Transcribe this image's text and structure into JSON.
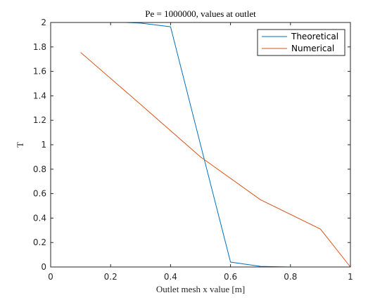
{
  "chart_data": {
    "type": "line",
    "title": "Pe = 1000000, values at outlet",
    "xlabel": "Outlet mesh x value [m]",
    "ylabel": "T",
    "xlim": [
      0,
      1
    ],
    "ylim": [
      0,
      2
    ],
    "xticks": [
      "0",
      "0.2",
      "0.4",
      "0.6",
      "0.8",
      "1"
    ],
    "yticks": [
      "0",
      "0.2",
      "0.4",
      "0.6",
      "0.8",
      "1",
      "1.2",
      "1.4",
      "1.6",
      "1.8",
      "2"
    ],
    "grid": false,
    "legend_position": "top-right",
    "series": [
      {
        "name": "Theoretical",
        "color": "#0072BD",
        "x": [
          0,
          0.1,
          0.2,
          0.25,
          0.3,
          0.4,
          0.5,
          0.6,
          0.7,
          0.8,
          0.9,
          1.0
        ],
        "y": [
          2.0,
          2.0,
          2.0,
          2.0,
          1.995,
          1.965,
          1.0,
          0.04,
          0.005,
          0.0,
          0.0,
          0.0
        ]
      },
      {
        "name": "Numerical",
        "color": "#D95319",
        "x": [
          0.1,
          0.3,
          0.5,
          0.7,
          0.9,
          1.0
        ],
        "y": [
          1.755,
          1.33,
          0.9,
          0.55,
          0.31,
          0.0
        ]
      }
    ]
  }
}
